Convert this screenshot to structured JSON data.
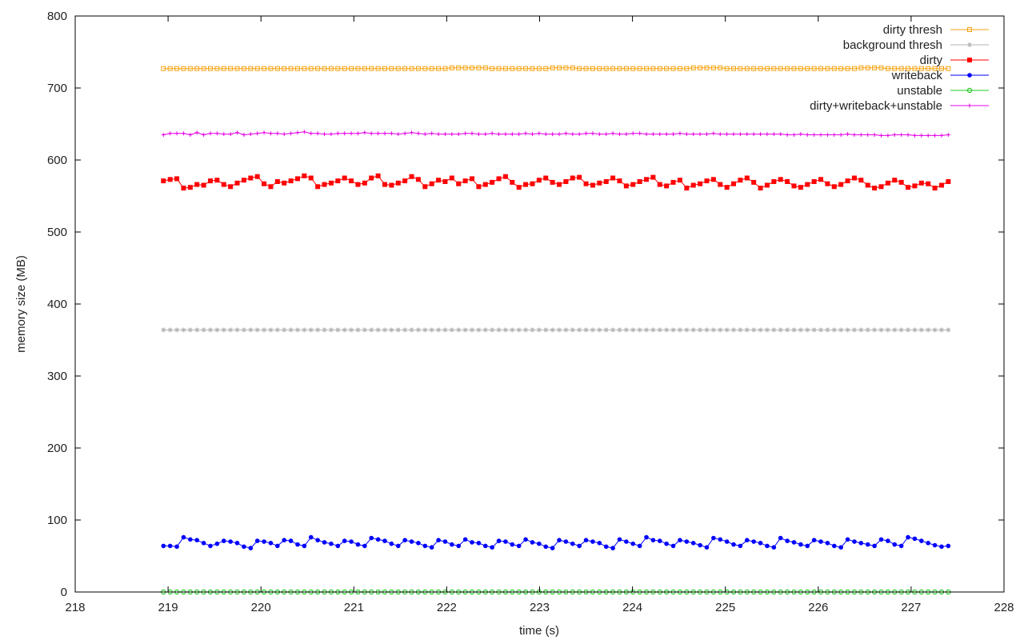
{
  "chart_data": {
    "type": "line",
    "title": "",
    "xlabel": "time (s)",
    "ylabel": "memory size (MB)",
    "xlim": [
      218,
      228
    ],
    "ylim": [
      0,
      800
    ],
    "xticks": [
      218,
      219,
      220,
      221,
      222,
      223,
      224,
      225,
      226,
      227,
      228
    ],
    "yticks": [
      0,
      100,
      200,
      300,
      400,
      500,
      600,
      700,
      800
    ],
    "grid": false,
    "legend_position": "top-right",
    "x_range_of_data": [
      218.95,
      227.4
    ],
    "samples_per_series": 118,
    "series": [
      {
        "name": "dirty thresh",
        "color": "#f5a20f",
        "marker": "square-open",
        "values": [
          727,
          727,
          727,
          727,
          727,
          727,
          727,
          727,
          727,
          727,
          727,
          727,
          727,
          727,
          727,
          727,
          727,
          727,
          727,
          727,
          727,
          727,
          727,
          727,
          727,
          727,
          727,
          727,
          727,
          727,
          727,
          727,
          727,
          727,
          727,
          727,
          727,
          727,
          727,
          727,
          727,
          727,
          727,
          728,
          728,
          728,
          728,
          728,
          728,
          727,
          727,
          727,
          727,
          727,
          727,
          727,
          727,
          727,
          728,
          728,
          728,
          728,
          727,
          727,
          727,
          727,
          727,
          727,
          727,
          727,
          727,
          727,
          727,
          727,
          727,
          727,
          727,
          727,
          727,
          728,
          728,
          728,
          728,
          728,
          727,
          727,
          727,
          727,
          727,
          727,
          727,
          727,
          727,
          727,
          727,
          727,
          727,
          727,
          727,
          727,
          727,
          727,
          727,
          727,
          728,
          728,
          728,
          728,
          727,
          727,
          727,
          727,
          727,
          727,
          727,
          727,
          727,
          727
        ]
      },
      {
        "name": "background thresh",
        "color": "#b4b4b4",
        "marker": "asterisk",
        "values": [
          364,
          364,
          364,
          364,
          364,
          364,
          364,
          364,
          364,
          364,
          364,
          364,
          364,
          364,
          364,
          364,
          364,
          364,
          364,
          364,
          364,
          364,
          364,
          364,
          364,
          364,
          364,
          364,
          364,
          364,
          364,
          364,
          364,
          364,
          364,
          364,
          364,
          364,
          364,
          364,
          364,
          364,
          364,
          364,
          364,
          364,
          364,
          364,
          364,
          364,
          364,
          364,
          364,
          364,
          364,
          364,
          364,
          364,
          364,
          364,
          364,
          364,
          364,
          364,
          364,
          364,
          364,
          364,
          364,
          364,
          364,
          364,
          364,
          364,
          364,
          364,
          364,
          364,
          364,
          364,
          364,
          364,
          364,
          364,
          364,
          364,
          364,
          364,
          364,
          364,
          364,
          364,
          364,
          364,
          364,
          364,
          364,
          364,
          364,
          364,
          364,
          364,
          364,
          364,
          364,
          364,
          364,
          364,
          364,
          364,
          364,
          364,
          364,
          364,
          364,
          364,
          364,
          364
        ]
      },
      {
        "name": "dirty",
        "color": "#ff0000",
        "marker": "square-filled",
        "values": [
          571,
          573,
          574,
          561,
          562,
          566,
          565,
          571,
          572,
          566,
          563,
          568,
          572,
          575,
          577,
          567,
          563,
          570,
          568,
          571,
          574,
          578,
          575,
          563,
          566,
          568,
          571,
          575,
          571,
          566,
          568,
          575,
          578,
          566,
          565,
          568,
          571,
          577,
          573,
          563,
          567,
          572,
          570,
          575,
          567,
          571,
          574,
          563,
          566,
          569,
          574,
          577,
          569,
          562,
          566,
          567,
          572,
          575,
          569,
          566,
          570,
          575,
          576,
          567,
          565,
          568,
          570,
          575,
          571,
          564,
          566,
          570,
          573,
          576,
          566,
          564,
          569,
          572,
          561,
          565,
          567,
          571,
          573,
          566,
          562,
          567,
          572,
          575,
          569,
          561,
          565,
          570,
          573,
          570,
          564,
          562,
          566,
          570,
          573,
          567,
          563,
          566,
          571,
          575,
          572,
          565,
          561,
          563,
          568,
          572,
          569,
          562,
          564,
          568,
          567,
          561,
          565,
          570
        ]
      },
      {
        "name": "writeback",
        "color": "#0000ff",
        "marker": "circle-filled",
        "values": [
          64,
          64,
          63,
          76,
          73,
          72,
          68,
          64,
          67,
          71,
          70,
          68,
          63,
          61,
          71,
          70,
          68,
          64,
          72,
          71,
          66,
          64,
          76,
          72,
          69,
          67,
          64,
          71,
          70,
          66,
          64,
          75,
          73,
          71,
          67,
          64,
          72,
          70,
          68,
          64,
          62,
          72,
          70,
          66,
          64,
          73,
          69,
          68,
          64,
          62,
          71,
          70,
          66,
          64,
          73,
          69,
          67,
          63,
          61,
          72,
          70,
          67,
          64,
          72,
          70,
          68,
          63,
          61,
          73,
          70,
          67,
          64,
          76,
          72,
          71,
          67,
          64,
          72,
          70,
          68,
          65,
          62,
          75,
          73,
          70,
          66,
          64,
          72,
          70,
          68,
          64,
          62,
          75,
          71,
          69,
          66,
          64,
          72,
          70,
          68,
          64,
          62,
          73,
          70,
          68,
          66,
          64,
          73,
          71,
          66,
          64,
          76,
          74,
          71,
          68,
          65,
          63,
          64
        ]
      },
      {
        "name": "unstable",
        "color": "#22cc22",
        "marker": "circle-open",
        "values": [
          0,
          0,
          0,
          0,
          0,
          0,
          0,
          0,
          0,
          0,
          0,
          0,
          0,
          0,
          0,
          0,
          0,
          0,
          0,
          0,
          0,
          0,
          0,
          0,
          0,
          0,
          0,
          0,
          0,
          0,
          0,
          0,
          0,
          0,
          0,
          0,
          0,
          0,
          0,
          0,
          0,
          0,
          0,
          0,
          0,
          0,
          0,
          0,
          0,
          0,
          0,
          0,
          0,
          0,
          0,
          0,
          0,
          0,
          0,
          0,
          0,
          0,
          0,
          0,
          0,
          0,
          0,
          0,
          0,
          0,
          0,
          0,
          0,
          0,
          0,
          0,
          0,
          0,
          0,
          0,
          0,
          0,
          0,
          0,
          0,
          0,
          0,
          0,
          0,
          0,
          0,
          0,
          0,
          0,
          0,
          0,
          0,
          0,
          0,
          0,
          0,
          0,
          0,
          0,
          0,
          0,
          0,
          0,
          0,
          0,
          0,
          0,
          0,
          0,
          0,
          0,
          0,
          0
        ]
      },
      {
        "name": "dirty+writeback+unstable",
        "color": "#e600e6",
        "marker": "plus",
        "values": [
          635,
          637,
          637,
          637,
          635,
          638,
          635,
          637,
          637,
          636,
          636,
          638,
          635,
          636,
          637,
          638,
          637,
          637,
          636,
          637,
          638,
          639,
          637,
          637,
          636,
          636,
          637,
          637,
          637,
          637,
          638,
          637,
          637,
          637,
          637,
          636,
          637,
          638,
          637,
          636,
          637,
          636,
          636,
          636,
          636,
          637,
          637,
          636,
          636,
          637,
          636,
          636,
          636,
          636,
          637,
          636,
          637,
          636,
          636,
          636,
          637,
          636,
          636,
          637,
          637,
          636,
          636,
          637,
          636,
          636,
          637,
          637,
          636,
          636,
          636,
          636,
          636,
          637,
          636,
          636,
          636,
          636,
          637,
          636,
          636,
          636,
          636,
          636,
          636,
          636,
          636,
          636,
          636,
          635,
          635,
          636,
          635,
          635,
          635,
          635,
          635,
          635,
          636,
          635,
          635,
          635,
          635,
          634,
          634,
          635,
          635,
          635,
          634,
          634,
          634,
          634,
          634,
          635
        ]
      }
    ]
  }
}
